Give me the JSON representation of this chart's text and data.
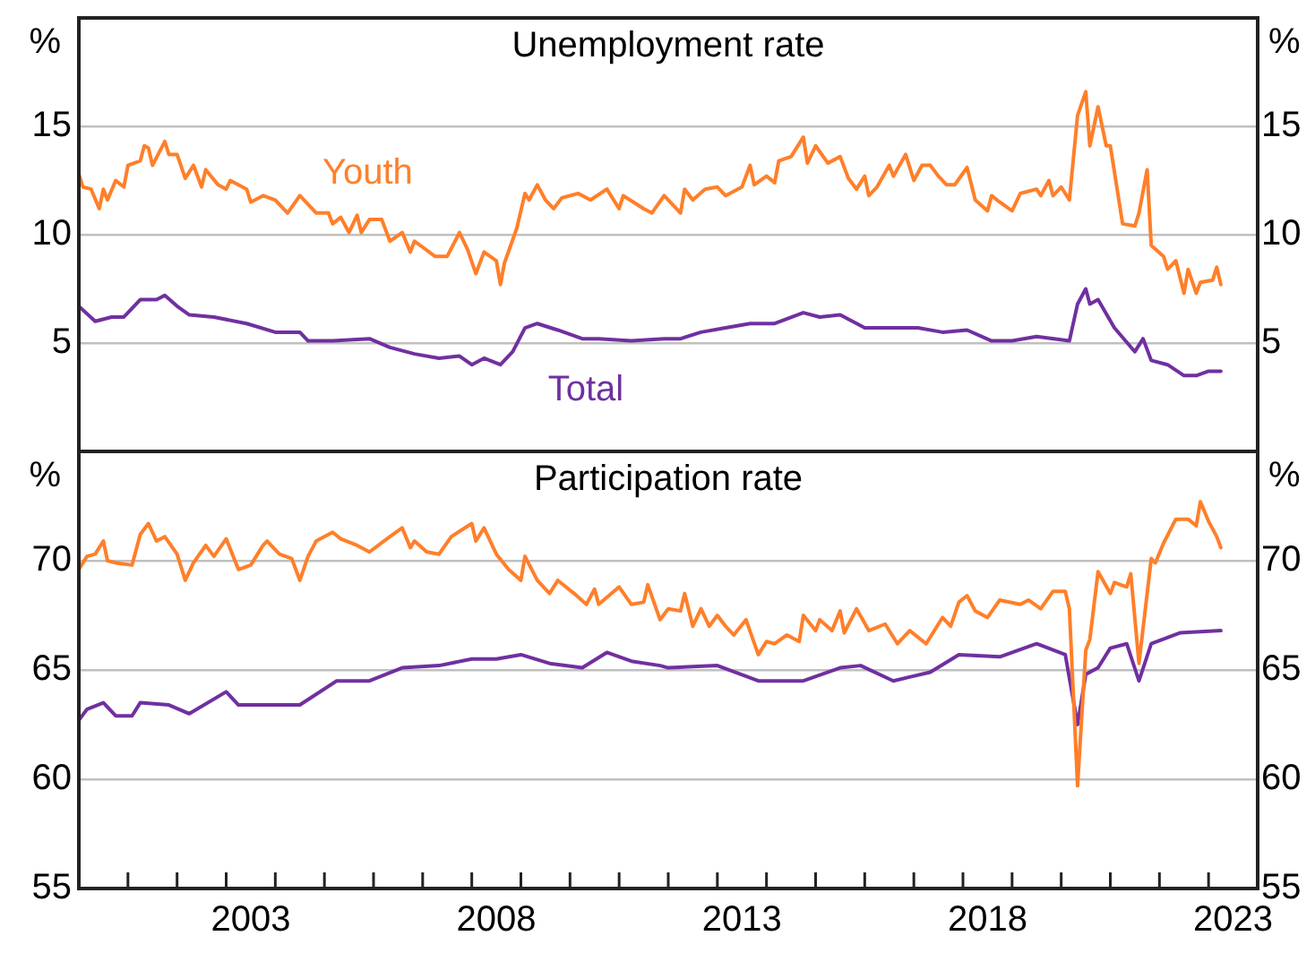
{
  "chart_data": [
    {
      "type": "line",
      "title": "Unemployment rate",
      "ylabel": "%",
      "y2label": "%",
      "xlim": [
        "2000-01",
        "2024-01"
      ],
      "ylim": [
        0,
        20
      ],
      "yticks": [
        5,
        10,
        15
      ],
      "y2lim": [
        0,
        20
      ],
      "y2ticks": [
        5,
        10,
        15
      ],
      "grid": "y",
      "tick_labels": "y",
      "series": [
        {
          "name": "Youth",
          "color": "#ff7f2a",
          "x": [
            "2000-01",
            "2000-02",
            "2000-04",
            "2000-06",
            "2000-07",
            "2000-08",
            "2000-10",
            "2000-12",
            "2001-01",
            "2001-04",
            "2001-05",
            "2001-06",
            "2001-07",
            "2001-10",
            "2001-11",
            "2002-01",
            "2002-03",
            "2002-05",
            "2002-07",
            "2002-08",
            "2002-11",
            "2003-01",
            "2003-02",
            "2003-06",
            "2003-07",
            "2003-10",
            "2004-01",
            "2004-04",
            "2004-07",
            "2004-11",
            "2005-02",
            "2005-03",
            "2005-05",
            "2005-07",
            "2005-09",
            "2005-10",
            "2005-12",
            "2006-03",
            "2006-05",
            "2006-08",
            "2006-10",
            "2006-11",
            "2007-04",
            "2007-07",
            "2007-10",
            "2007-12",
            "2008-02",
            "2008-04",
            "2008-07",
            "2008-08",
            "2008-09",
            "2008-12",
            "2009-02",
            "2009-03",
            "2009-05",
            "2009-07",
            "2009-09",
            "2009-11",
            "2010-03",
            "2010-06",
            "2010-10",
            "2011-01",
            "2011-02",
            "2011-07",
            "2011-09",
            "2011-12",
            "2012-04",
            "2012-05",
            "2012-07",
            "2012-10",
            "2013-01",
            "2013-03",
            "2013-07",
            "2013-09",
            "2013-10",
            "2014-01",
            "2014-03",
            "2014-04",
            "2014-07",
            "2014-10",
            "2014-11",
            "2015-01",
            "2015-04",
            "2015-07",
            "2015-09",
            "2015-11",
            "2016-01",
            "2016-02",
            "2016-04",
            "2016-07",
            "2016-08",
            "2016-11",
            "2017-01",
            "2017-03",
            "2017-05",
            "2017-07",
            "2017-09",
            "2017-11",
            "2018-02",
            "2018-04",
            "2018-07",
            "2018-08",
            "2018-10",
            "2019-01",
            "2019-03",
            "2019-07",
            "2019-08",
            "2019-10",
            "2019-11",
            "2020-01",
            "2020-03",
            "2020-05",
            "2020-07",
            "2020-08",
            "2020-10",
            "2020-12",
            "2021-01",
            "2021-04",
            "2021-07",
            "2021-08",
            "2021-10",
            "2021-11",
            "2022-02",
            "2022-03",
            "2022-05",
            "2022-07",
            "2022-08",
            "2022-10",
            "2022-11",
            "2023-02",
            "2023-03",
            "2023-04"
          ],
          "values": [
            12.8,
            12.2,
            12.1,
            11.2,
            12.1,
            11.6,
            12.5,
            12.2,
            13.2,
            13.4,
            14.1,
            14.0,
            13.2,
            14.3,
            13.7,
            13.7,
            12.6,
            13.2,
            12.2,
            13.0,
            12.3,
            12.1,
            12.5,
            12.1,
            11.5,
            11.8,
            11.6,
            11.0,
            11.8,
            11.0,
            11.0,
            10.5,
            10.8,
            10.1,
            10.9,
            10.1,
            10.7,
            10.7,
            9.7,
            10.1,
            9.2,
            9.7,
            9.0,
            9.0,
            10.1,
            9.3,
            8.2,
            9.2,
            8.8,
            7.7,
            8.7,
            10.3,
            11.9,
            11.6,
            12.3,
            11.6,
            11.2,
            11.7,
            11.9,
            11.6,
            12.1,
            11.2,
            11.8,
            11.2,
            11.0,
            11.8,
            11.0,
            12.1,
            11.6,
            12.1,
            12.2,
            11.8,
            12.2,
            13.2,
            12.3,
            12.7,
            12.4,
            13.4,
            13.6,
            14.5,
            13.3,
            14.1,
            13.3,
            13.6,
            12.6,
            12.1,
            12.7,
            11.8,
            12.2,
            13.2,
            12.7,
            13.7,
            12.5,
            13.2,
            13.2,
            12.7,
            12.3,
            12.3,
            13.1,
            11.6,
            11.1,
            11.8,
            11.5,
            11.1,
            11.9,
            12.1,
            11.8,
            12.5,
            11.8,
            12.2,
            11.6,
            15.5,
            16.6,
            14.1,
            15.9,
            14.1,
            14.1,
            10.5,
            10.4,
            11.0,
            13.0,
            9.5,
            9.0,
            8.4,
            8.8,
            7.3,
            8.4,
            7.3,
            7.8,
            7.9,
            8.5,
            7.7
          ]
        },
        {
          "name": "Total",
          "color": "#7030a0",
          "x": [
            "2000-01",
            "2000-05",
            "2000-09",
            "2000-12",
            "2001-04",
            "2001-08",
            "2001-10",
            "2002-01",
            "2002-04",
            "2002-10",
            "2003-06",
            "2004-01",
            "2004-07",
            "2004-09",
            "2005-03",
            "2005-12",
            "2006-05",
            "2006-11",
            "2007-05",
            "2007-10",
            "2008-01",
            "2008-04",
            "2008-08",
            "2008-11",
            "2009-02",
            "2009-05",
            "2009-10",
            "2010-04",
            "2010-08",
            "2011-04",
            "2011-12",
            "2012-04",
            "2012-09",
            "2013-03",
            "2013-09",
            "2014-03",
            "2014-10",
            "2015-02",
            "2015-07",
            "2016-01",
            "2016-08",
            "2017-02",
            "2017-08",
            "2018-02",
            "2018-08",
            "2019-01",
            "2019-07",
            "2020-03",
            "2020-05",
            "2020-07",
            "2020-08",
            "2020-10",
            "2021-02",
            "2021-07",
            "2021-09",
            "2021-11",
            "2022-03",
            "2022-07",
            "2022-10",
            "2023-01",
            "2023-04"
          ],
          "values": [
            6.7,
            6.0,
            6.2,
            6.2,
            7.0,
            7.0,
            7.2,
            6.7,
            6.3,
            6.2,
            5.9,
            5.5,
            5.5,
            5.1,
            5.1,
            5.2,
            4.8,
            4.5,
            4.3,
            4.4,
            4.0,
            4.3,
            4.0,
            4.6,
            5.7,
            5.9,
            5.6,
            5.2,
            5.2,
            5.1,
            5.2,
            5.2,
            5.5,
            5.7,
            5.9,
            5.9,
            6.4,
            6.2,
            6.3,
            5.7,
            5.7,
            5.7,
            5.5,
            5.6,
            5.1,
            5.1,
            5.3,
            5.1,
            6.8,
            7.5,
            6.8,
            7.0,
            5.7,
            4.6,
            5.2,
            4.2,
            4.0,
            3.5,
            3.5,
            3.7,
            3.7
          ]
        }
      ]
    },
    {
      "type": "line",
      "title": "Participation rate",
      "ylabel": "%",
      "y2label": "%",
      "xlim": [
        "2000-01",
        "2024-01"
      ],
      "xticks": [
        {
          "value": "2001-01",
          "label": null
        },
        {
          "value": "2002-01",
          "label": null
        },
        {
          "value": "2003-01",
          "label": null
        },
        {
          "value": "2003-07",
          "label": "2003"
        },
        {
          "value": "2004-01",
          "label": null
        },
        {
          "value": "2005-01",
          "label": null
        },
        {
          "value": "2006-01",
          "label": null
        },
        {
          "value": "2007-01",
          "label": null
        },
        {
          "value": "2008-01",
          "label": null
        },
        {
          "value": "2008-07",
          "label": "2008"
        },
        {
          "value": "2009-01",
          "label": null
        },
        {
          "value": "2010-01",
          "label": null
        },
        {
          "value": "2011-01",
          "label": null
        },
        {
          "value": "2012-01",
          "label": null
        },
        {
          "value": "2013-01",
          "label": null
        },
        {
          "value": "2013-07",
          "label": "2013"
        },
        {
          "value": "2014-01",
          "label": null
        },
        {
          "value": "2015-01",
          "label": null
        },
        {
          "value": "2016-01",
          "label": null
        },
        {
          "value": "2017-01",
          "label": null
        },
        {
          "value": "2018-01",
          "label": null
        },
        {
          "value": "2018-07",
          "label": "2018"
        },
        {
          "value": "2019-01",
          "label": null
        },
        {
          "value": "2020-01",
          "label": null
        },
        {
          "value": "2021-01",
          "label": null
        },
        {
          "value": "2022-01",
          "label": null
        },
        {
          "value": "2023-01",
          "label": null
        },
        {
          "value": "2023-07",
          "label": "2023"
        }
      ],
      "ylim": [
        55,
        75
      ],
      "yticks": [
        55,
        60,
        65,
        70
      ],
      "y2lim": [
        55,
        75
      ],
      "y2ticks": [
        55,
        60,
        65,
        70
      ],
      "grid": "y",
      "series": [
        {
          "color": "#ff7f2a",
          "x": [
            "2000-01",
            "2000-03",
            "2000-05",
            "2000-07",
            "2000-08",
            "2000-10",
            "2001-02",
            "2001-04",
            "2001-06",
            "2001-08",
            "2001-10",
            "2002-01",
            "2002-03",
            "2002-05",
            "2002-08",
            "2002-10",
            "2003-01",
            "2003-04",
            "2003-07",
            "2003-10",
            "2003-11",
            "2004-02",
            "2004-05",
            "2004-07",
            "2004-09",
            "2004-11",
            "2005-03",
            "2005-05",
            "2005-09",
            "2005-12",
            "2006-05",
            "2006-08",
            "2006-10",
            "2006-11",
            "2007-02",
            "2007-05",
            "2007-08",
            "2008-01",
            "2008-02",
            "2008-04",
            "2008-05",
            "2008-07",
            "2008-10",
            "2009-01",
            "2009-02",
            "2009-05",
            "2009-08",
            "2009-10",
            "2010-02",
            "2010-05",
            "2010-07",
            "2010-08",
            "2011-01",
            "2011-04",
            "2011-07",
            "2011-08",
            "2011-11",
            "2012-01",
            "2012-04",
            "2012-05",
            "2012-07",
            "2012-09",
            "2012-11",
            "2013-01",
            "2013-03",
            "2013-05",
            "2013-08",
            "2013-11",
            "2014-01",
            "2014-03",
            "2014-06",
            "2014-09",
            "2014-10",
            "2015-01",
            "2015-02",
            "2015-05",
            "2015-07",
            "2015-08",
            "2015-11",
            "2016-02",
            "2016-06",
            "2016-09",
            "2016-12",
            "2017-04",
            "2017-08",
            "2017-10",
            "2017-12",
            "2018-02",
            "2018-04",
            "2018-07",
            "2018-10",
            "2019-03",
            "2019-05",
            "2019-08",
            "2019-11",
            "2020-02",
            "2020-03",
            "2020-05",
            "2020-07",
            "2020-08",
            "2020-10",
            "2021-01",
            "2021-02",
            "2021-05",
            "2021-06",
            "2021-08",
            "2021-11",
            "2021-12",
            "2022-02",
            "2022-05",
            "2022-08",
            "2022-10",
            "2022-11",
            "2023-01",
            "2023-03",
            "2023-04"
          ],
          "values": [
            69.6,
            70.2,
            70.3,
            70.9,
            70.0,
            69.9,
            69.8,
            71.2,
            71.7,
            70.9,
            71.1,
            70.3,
            69.1,
            69.9,
            70.7,
            70.2,
            71.0,
            69.6,
            69.8,
            70.7,
            70.9,
            70.3,
            70.1,
            69.1,
            70.2,
            70.9,
            71.3,
            71.0,
            70.7,
            70.4,
            71.1,
            71.5,
            70.6,
            70.9,
            70.4,
            70.3,
            71.1,
            71.7,
            70.9,
            71.5,
            71.1,
            70.3,
            69.6,
            69.1,
            70.2,
            69.1,
            68.5,
            69.1,
            68.5,
            68.0,
            68.7,
            68.0,
            68.8,
            68.0,
            68.1,
            68.9,
            67.3,
            67.8,
            67.7,
            68.5,
            67.0,
            67.8,
            67.0,
            67.5,
            67.0,
            66.6,
            67.3,
            65.7,
            66.3,
            66.2,
            66.6,
            66.3,
            67.5,
            66.8,
            67.3,
            66.8,
            67.7,
            66.7,
            67.8,
            66.8,
            67.1,
            66.2,
            66.8,
            66.2,
            67.4,
            67.0,
            68.1,
            68.4,
            67.7,
            67.4,
            68.2,
            68.0,
            68.2,
            67.8,
            68.6,
            68.6,
            67.8,
            59.7,
            65.9,
            66.4,
            69.5,
            68.5,
            69.0,
            68.8,
            69.4,
            65.3,
            70.1,
            69.9,
            70.8,
            71.9,
            71.9,
            71.6,
            72.7,
            71.8,
            71.1,
            70.6
          ]
        },
        {
          "color": "#7030a0",
          "x": [
            "2000-01",
            "2000-03",
            "2000-07",
            "2000-10",
            "2001-02",
            "2001-04",
            "2001-11",
            "2002-04",
            "2003-01",
            "2003-04",
            "2003-10",
            "2004-07",
            "2005-04",
            "2005-12",
            "2006-08",
            "2007-05",
            "2008-01",
            "2008-07",
            "2009-01",
            "2009-08",
            "2010-04",
            "2010-10",
            "2011-04",
            "2011-11",
            "2012-01",
            "2013-01",
            "2013-11",
            "2014-10",
            "2015-07",
            "2015-12",
            "2016-08",
            "2017-05",
            "2017-12",
            "2018-10",
            "2019-07",
            "2020-02",
            "2020-05",
            "2020-07",
            "2020-10",
            "2021-01",
            "2021-05",
            "2021-08",
            "2021-11",
            "2022-06",
            "2023-04"
          ],
          "values": [
            62.7,
            63.2,
            63.5,
            62.9,
            62.9,
            63.5,
            63.4,
            63.0,
            64.0,
            63.4,
            63.4,
            63.4,
            64.5,
            64.5,
            65.1,
            65.2,
            65.5,
            65.5,
            65.7,
            65.3,
            65.1,
            65.8,
            65.4,
            65.2,
            65.1,
            65.2,
            64.5,
            64.5,
            65.1,
            65.2,
            64.5,
            64.9,
            65.7,
            65.6,
            66.2,
            65.7,
            62.5,
            64.8,
            65.1,
            66.0,
            66.2,
            64.5,
            66.2,
            66.7,
            66.8
          ]
        }
      ]
    }
  ]
}
